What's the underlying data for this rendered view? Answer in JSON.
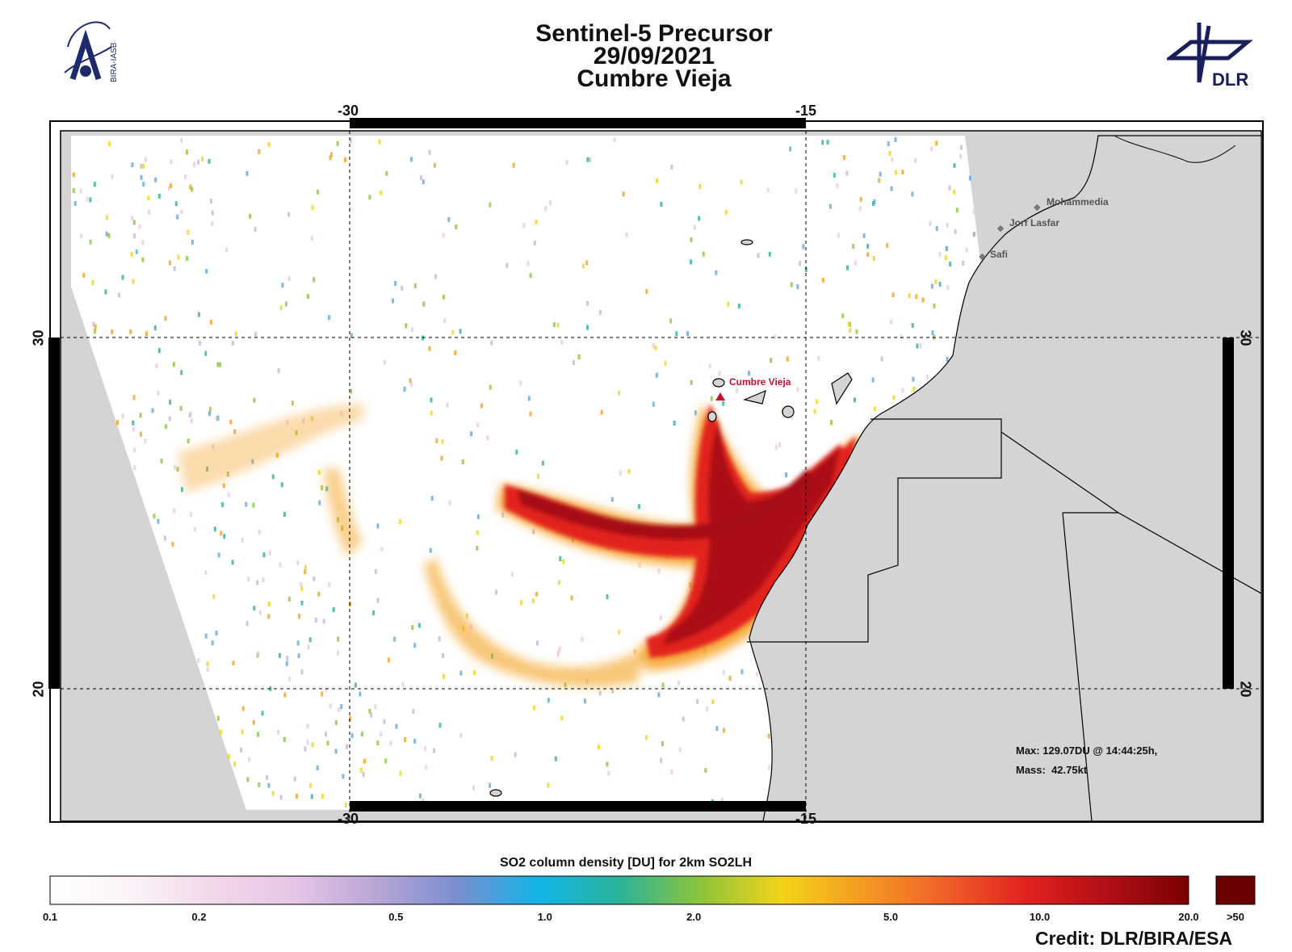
{
  "title": {
    "line1": "Sentinel-5 Precursor",
    "line2": "29/09/2021",
    "line3": "Cumbre Vieja"
  },
  "logos": {
    "left_text": "BIRA-IASB",
    "right_text": "DLR"
  },
  "map": {
    "lon_ticks": [
      {
        "value": -30,
        "label": "-30"
      },
      {
        "value": -15,
        "label": "-15"
      }
    ],
    "lat_ticks": [
      {
        "value": 30,
        "label": "30"
      },
      {
        "value": 20,
        "label": "20"
      }
    ],
    "places": [
      {
        "name": "Mohammedia",
        "lon": -7.4,
        "lat": 33.7
      },
      {
        "name": "Jorf Lasfar",
        "lon": -8.6,
        "lat": 33.1
      },
      {
        "name": "Safi",
        "lon": -9.2,
        "lat": 32.3
      }
    ],
    "volcano": {
      "name": "Cumbre Vieja",
      "lon": -17.8,
      "lat": 28.6,
      "color": "#c8102e"
    },
    "stats": {
      "max_line": "Max: 129.07DU @ 14:44:25h,",
      "mass_line": "Mass:  42.75kt"
    },
    "colors": {
      "land": "#d4d4d4",
      "plume_core": "#a50f15",
      "plume_edge": "#f4a020"
    }
  },
  "colorbar": {
    "title": "SO2 column density [DU] for 2km SO2LH",
    "tick_labels": [
      "0.1",
      "0.2",
      "0.5",
      "1.0",
      "2.0",
      "5.0",
      "10.0",
      "20.0"
    ],
    "over_label": ">50",
    "over_color": "#6b0000",
    "stops": [
      "#ffffff",
      "#fbf3f8",
      "#f2d8ea",
      "#e6c6e6",
      "#b9a6d6",
      "#7a8ed0",
      "#12b5e6",
      "#2bb39a",
      "#8cc43b",
      "#f2d41a",
      "#f49a22",
      "#f0602a",
      "#e2221f",
      "#b10f16",
      "#7a0000"
    ]
  },
  "credit": "Credit: DLR/BIRA/ESA"
}
